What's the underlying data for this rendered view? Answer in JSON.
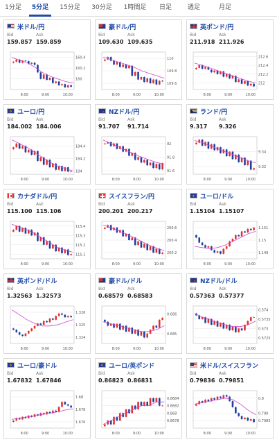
{
  "tabs": [
    {
      "label": "1分足",
      "active": false
    },
    {
      "label": "5分足",
      "active": true
    },
    {
      "label": "15分足",
      "active": false
    },
    {
      "label": "30分足",
      "active": false
    },
    {
      "label": "1時間足",
      "active": false
    },
    {
      "label": "日足",
      "active": false
    },
    {
      "label": "週足",
      "active": false
    },
    {
      "label": "月足",
      "active": false
    }
  ],
  "labels": {
    "bid": "Bid",
    "ask": "Ask"
  },
  "colors": {
    "accent": "#1e4aa8",
    "up": "#e03030",
    "down": "#1f3fa0",
    "ma": "#cc44cc"
  },
  "cards": [
    {
      "pair": "米ドル/円",
      "flag": "us",
      "bid": "159.857",
      "ask": "159.859",
      "y_ticks": [
        "160.4",
        "160.2",
        "160"
      ],
      "y_vals": [
        160.4,
        160.2,
        160
      ],
      "ylim": [
        159.8,
        160.5
      ],
      "x_ticks": [
        "8:00",
        "9:00",
        "10:00"
      ],
      "series": [
        160.32,
        160.36,
        160.3,
        160.34,
        160.33,
        160.28,
        160.3,
        160.26,
        160.12,
        160.0,
        160.08,
        159.98,
        160.02,
        159.92,
        159.95,
        159.88,
        159.9,
        159.84,
        159.88,
        159.85
      ],
      "ma": [
        160.4,
        160.35,
        160.3,
        160.22,
        160.12,
        160.05,
        160.0,
        159.95,
        159.92
      ]
    },
    {
      "pair": "豪ドル/円",
      "flag": "au",
      "bid": "109.630",
      "ask": "109.635",
      "y_ticks": [
        "110",
        "109.8",
        "109.6"
      ],
      "y_vals": [
        110,
        109.8,
        109.6
      ],
      "ylim": [
        109.5,
        110.1
      ],
      "x_ticks": [
        "8:00",
        "9:00",
        "10:00"
      ],
      "series": [
        109.98,
        110.02,
        109.96,
        109.9,
        109.94,
        109.86,
        109.9,
        109.84,
        109.88,
        109.72,
        109.78,
        109.66,
        109.7,
        109.62,
        109.68,
        109.6,
        109.66,
        109.58,
        109.64,
        109.63
      ],
      "ma": [
        110.02,
        109.98,
        109.94,
        109.9,
        109.86,
        109.8,
        109.76,
        109.72,
        109.68
      ]
    },
    {
      "pair": "英ポンド/円",
      "flag": "gb",
      "bid": "211.918",
      "ask": "211.926",
      "y_ticks": [
        "212.6",
        "212.4",
        "212.2",
        "212"
      ],
      "y_vals": [
        212.6,
        212.4,
        212.2,
        212
      ],
      "ylim": [
        211.85,
        212.7
      ],
      "x_ticks": [
        "8:00",
        "9:00",
        "10:00"
      ],
      "series": [
        212.34,
        212.4,
        212.32,
        212.36,
        212.3,
        212.24,
        212.28,
        212.2,
        212.26,
        212.14,
        212.2,
        212.1,
        212.16,
        212.02,
        212.08,
        211.98,
        212.04,
        211.94,
        211.98,
        211.92
      ],
      "ma": [
        212.45,
        212.4,
        212.34,
        212.28,
        212.22,
        212.16,
        212.1,
        212.04,
        212.0
      ]
    },
    {
      "pair": "ユーロ/円",
      "flag": "eu",
      "bid": "184.002",
      "ask": "184.006",
      "y_ticks": [
        "184.4",
        "184.2",
        "184"
      ],
      "y_vals": [
        184.4,
        184.2,
        184
      ],
      "ylim": [
        183.95,
        184.55
      ],
      "x_ticks": [
        "8:00",
        "9:00",
        "10:00"
      ],
      "series": [
        184.38,
        184.44,
        184.36,
        184.4,
        184.3,
        184.34,
        184.26,
        184.32,
        184.16,
        184.22,
        184.1,
        184.18,
        184.06,
        184.12,
        184.02,
        184.08,
        184.0,
        184.06,
        183.99,
        184.0
      ],
      "ma": [
        184.5,
        184.44,
        184.38,
        184.3,
        184.22,
        184.14,
        184.08,
        184.04,
        184.0
      ]
    },
    {
      "pair": "NZドル/円",
      "flag": "nz",
      "bid": "91.707",
      "ask": "91.714",
      "y_ticks": [
        "92",
        "91.8",
        "91.6"
      ],
      "y_vals": [
        92,
        91.8,
        91.6
      ],
      "ylim": [
        91.55,
        92.1
      ],
      "x_ticks": [
        "8:00",
        "9:00",
        "10:00"
      ],
      "series": [
        92.0,
        92.02,
        91.96,
        92.0,
        91.92,
        91.96,
        91.88,
        91.92,
        91.82,
        91.86,
        91.76,
        91.8,
        91.72,
        91.76,
        91.68,
        91.72,
        91.64,
        91.7,
        91.62,
        91.71
      ],
      "ma": [
        92.05,
        92.0,
        91.95,
        91.9,
        91.85,
        91.8,
        91.76,
        91.72,
        91.7
      ]
    },
    {
      "pair": "ランド/円",
      "flag": "za",
      "bid": "9.317",
      "ask": "9.326",
      "y_ticks": [
        "9.34",
        "9.32"
      ],
      "y_vals": [
        9.34,
        9.32
      ],
      "ylim": [
        9.31,
        9.36
      ],
      "x_ticks": [
        "8:00",
        "9:00",
        "10:00"
      ],
      "series": [
        9.352,
        9.356,
        9.348,
        9.353,
        9.344,
        9.35,
        9.342,
        9.346,
        9.338,
        9.343,
        9.334,
        9.34,
        9.33,
        9.336,
        9.326,
        9.332,
        9.322,
        9.328,
        9.316,
        9.318
      ],
      "ma": [
        9.355,
        9.352,
        9.348,
        9.344,
        9.34,
        9.336,
        9.332,
        9.328,
        9.325
      ]
    },
    {
      "pair": "カナダドル/円",
      "flag": "ca",
      "bid": "115.100",
      "ask": "115.106",
      "y_ticks": [
        "115.4",
        "115.3",
        "115.2",
        "115.1"
      ],
      "y_vals": [
        115.4,
        115.3,
        115.2,
        115.1
      ],
      "ylim": [
        115.05,
        115.45
      ],
      "x_ticks": [
        "8:00",
        "9:00",
        "10:00"
      ],
      "series": [
        115.36,
        115.4,
        115.34,
        115.38,
        115.32,
        115.36,
        115.3,
        115.33,
        115.24,
        115.28,
        115.2,
        115.24,
        115.16,
        115.2,
        115.13,
        115.17,
        115.11,
        115.15,
        115.09,
        115.1
      ],
      "ma": [
        115.42,
        115.39,
        115.36,
        115.32,
        115.27,
        115.22,
        115.17,
        115.14,
        115.12
      ]
    },
    {
      "pair": "スイスフラン/円",
      "flag": "ch",
      "bid": "200.201",
      "ask": "200.217",
      "y_ticks": [
        "200.6",
        "200.4",
        "200.2"
      ],
      "y_vals": [
        200.6,
        200.4,
        200.2
      ],
      "ylim": [
        200.1,
        200.7
      ],
      "x_ticks": [
        "8:00",
        "9:00",
        "10:00"
      ],
      "series": [
        200.6,
        200.64,
        200.56,
        200.6,
        200.52,
        200.56,
        200.46,
        200.5,
        200.4,
        200.44,
        200.32,
        200.38,
        200.28,
        200.34,
        200.24,
        200.3,
        200.2,
        200.26,
        200.18,
        200.2
      ],
      "ma": [
        200.64,
        200.6,
        200.55,
        200.5,
        200.44,
        200.38,
        200.32,
        200.27,
        200.23
      ]
    },
    {
      "pair": "ユーロ/ドル",
      "flag": "eu",
      "bid": "1.15104",
      "ask": "1.15107",
      "y_ticks": [
        "1.151",
        "1.15",
        "1.149"
      ],
      "y_vals": [
        1.151,
        1.15,
        1.149
      ],
      "ylim": [
        1.1485,
        1.1515
      ],
      "x_ticks": [
        "8:00",
        "9:00",
        "10:00"
      ],
      "series": [
        1.1502,
        1.1498,
        1.1496,
        1.1494,
        1.1495,
        1.1492,
        1.149,
        1.1491,
        1.1489,
        1.1493,
        1.1495,
        1.1499,
        1.1501,
        1.1504,
        1.1503,
        1.1507,
        1.1506,
        1.1509,
        1.1508,
        1.151
      ],
      "ma": [
        1.1495,
        1.1494,
        1.1493,
        1.1494,
        1.1496,
        1.1499,
        1.1502,
        1.1505,
        1.1507
      ]
    },
    {
      "pair": "英ポンド/ドル",
      "flag": "gb",
      "bid": "1.32563",
      "ask": "1.32573",
      "y_ticks": [
        "1.326",
        "1.325",
        "1.324"
      ],
      "y_vals": [
        1.326,
        1.325,
        1.324
      ],
      "ylim": [
        1.3235,
        1.3265
      ],
      "x_ticks": [
        "8:00",
        "9:00",
        "10:00"
      ],
      "series": [
        1.3246,
        1.3244,
        1.3242,
        1.3241,
        1.3243,
        1.3245,
        1.3247,
        1.3249,
        1.3251,
        1.325,
        1.3253,
        1.3252,
        1.3255,
        1.3254,
        1.3257,
        1.3259,
        1.3258,
        1.3256,
        1.3257,
        1.3256
      ],
      "ma": [
        1.3262,
        1.3258,
        1.3254,
        1.3251,
        1.3249,
        1.3249,
        1.325,
        1.3252,
        1.3254
      ]
    },
    {
      "pair": "豪ドル/ドル",
      "flag": "au",
      "bid": "0.68579",
      "ask": "0.68583",
      "y_ticks": [
        "0.686",
        "0.685"
      ],
      "y_vals": [
        0.686,
        0.685
      ],
      "ylim": [
        0.6845,
        0.6864
      ],
      "x_ticks": [
        "8:00",
        "9:00",
        "10:00"
      ],
      "series": [
        0.6856,
        0.6854,
        0.6855,
        0.6853,
        0.6855,
        0.6852,
        0.6854,
        0.6851,
        0.6853,
        0.685,
        0.6852,
        0.6849,
        0.6851,
        0.6848,
        0.685,
        0.6852,
        0.6854,
        0.6853,
        0.6857,
        0.6858
      ],
      "ma": [
        0.6856,
        0.6855,
        0.6854,
        0.6853,
        0.6852,
        0.6851,
        0.6851,
        0.6852,
        0.6854
      ]
    },
    {
      "pair": "NZドル/ドル",
      "flag": "nz",
      "bid": "0.57363",
      "ask": "0.57377",
      "y_ticks": [
        "0.574",
        "0.5735",
        "0.573",
        "0.5725"
      ],
      "y_vals": [
        0.574,
        0.5735,
        0.573,
        0.5725
      ],
      "ylim": [
        0.5722,
        0.5742
      ],
      "x_ticks": [
        "8:00",
        "9:00",
        "10:00"
      ],
      "series": [
        0.5737,
        0.5735,
        0.5736,
        0.5733,
        0.5735,
        0.5732,
        0.5734,
        0.5731,
        0.5733,
        0.573,
        0.5732,
        0.5729,
        0.5731,
        0.5728,
        0.573,
        0.5729,
        0.5732,
        0.5734,
        0.5736,
        0.5736
      ],
      "ma": [
        0.5738,
        0.5736,
        0.5735,
        0.5733,
        0.5732,
        0.5731,
        0.5731,
        0.5732,
        0.5734
      ]
    },
    {
      "pair": "ユーロ/豪ドル",
      "flag": "eu",
      "bid": "1.67832",
      "ask": "1.67846",
      "y_ticks": [
        "1.68",
        "1.678",
        "1.676"
      ],
      "y_vals": [
        1.68,
        1.678,
        1.676
      ],
      "ylim": [
        1.675,
        1.681
      ],
      "x_ticks": [
        "8:00",
        "9:00",
        "10:00"
      ],
      "series": [
        1.6762,
        1.6766,
        1.6764,
        1.6768,
        1.6766,
        1.677,
        1.6768,
        1.6772,
        1.677,
        1.6774,
        1.6772,
        1.6776,
        1.6774,
        1.6778,
        1.6776,
        1.6784,
        1.6792,
        1.6788,
        1.6786,
        1.6783
      ],
      "ma": [
        1.6764,
        1.6766,
        1.6768,
        1.677,
        1.6772,
        1.6774,
        1.6776,
        1.6779,
        1.6781
      ]
    },
    {
      "pair": "ユーロ/英ポンド",
      "flag": "eu",
      "bid": "0.86823",
      "ask": "0.86831",
      "y_ticks": [
        "0.8684",
        "0.8682",
        "0.868",
        "0.8678"
      ],
      "y_vals": [
        0.8684,
        0.8682,
        0.868,
        0.8678
      ],
      "ylim": [
        0.8676,
        0.8686
      ],
      "x_ticks": [
        "8:00",
        "9:00",
        "10:00"
      ],
      "series": [
        0.8677,
        0.8678,
        0.8677,
        0.8679,
        0.8678,
        0.868,
        0.8679,
        0.8681,
        0.868,
        0.8682,
        0.8681,
        0.8683,
        0.8682,
        0.8683,
        0.8682,
        0.8684,
        0.8683,
        0.8684,
        0.8682,
        0.8682
      ],
      "ma": [
        0.8677,
        0.8678,
        0.8679,
        0.868,
        0.8681,
        0.8682,
        0.8682,
        0.8683,
        0.8683
      ]
    },
    {
      "pair": "米ドル/スイスフラン",
      "flag": "us",
      "bid": "0.79836",
      "ask": "0.79851",
      "y_ticks": [
        "0.8",
        "0.799",
        "0.7985"
      ],
      "y_vals": [
        0.8,
        0.799,
        0.7985
      ],
      "ylim": [
        0.798,
        0.8005
      ],
      "x_ticks": [
        "8:00",
        "9:00",
        "10:00"
      ],
      "series": [
        0.7996,
        0.7998,
        0.7997,
        0.7999,
        0.7998,
        0.8,
        0.7999,
        0.8001,
        0.8,
        0.8002,
        0.8001,
        0.7998,
        0.7994,
        0.799,
        0.7988,
        0.7986,
        0.7987,
        0.7985,
        0.7986,
        0.7984
      ],
      "ma": [
        0.7996,
        0.7997,
        0.7998,
        0.7999,
        0.8,
        0.7999,
        0.7996,
        0.7992,
        0.7989
      ]
    }
  ]
}
